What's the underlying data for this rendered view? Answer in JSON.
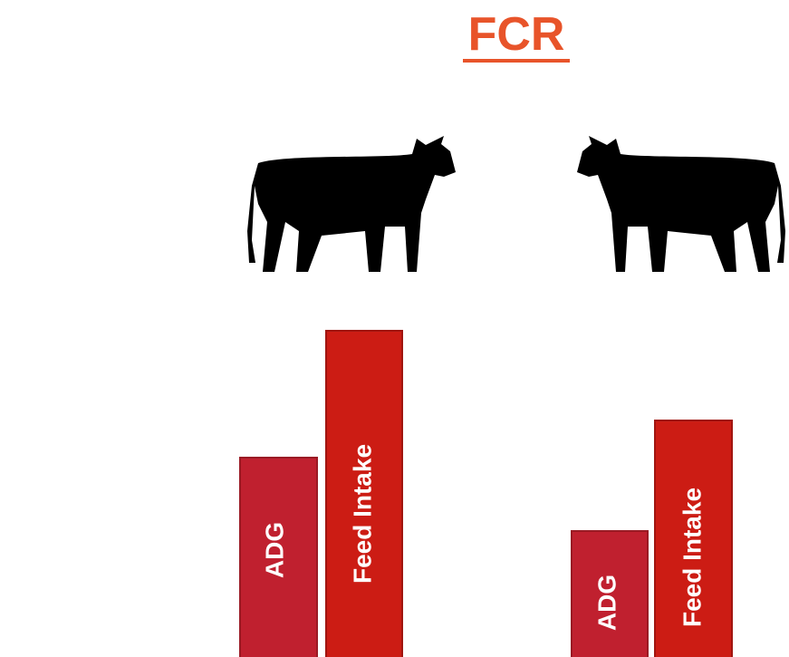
{
  "title": "FCR",
  "groups": [
    {
      "bars": [
        "ADG",
        "Feed Intake"
      ]
    },
    {
      "bars": [
        "ADG",
        "Feed Intake"
      ]
    }
  ]
}
